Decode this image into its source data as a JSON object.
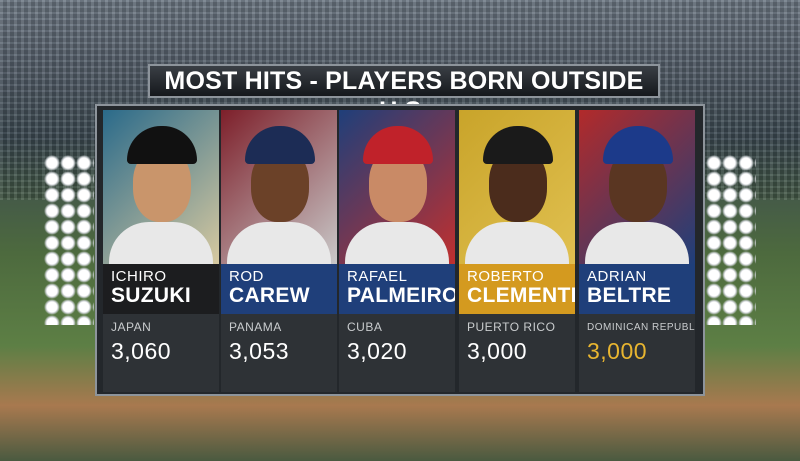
{
  "header": {
    "title": "MOST HITS - PLAYERS BORN OUTSIDE U.S."
  },
  "players": [
    {
      "first": "ICHIRO",
      "last": "SUZUKI",
      "country": "JAPAN",
      "hits": "3,060"
    },
    {
      "first": "ROD",
      "last": "CAREW",
      "country": "PANAMA",
      "hits": "3,053"
    },
    {
      "first": "RAFAEL",
      "last": "PALMEIRO",
      "country": "CUBA",
      "hits": "3,020"
    },
    {
      "first": "ROBERTO",
      "last": "CLEMENTE",
      "country": "PUERTO RICO",
      "hits": "3,000"
    },
    {
      "first": "ADRIAN",
      "last": "BELTRE",
      "country": "DOMINICAN REPUBLIC",
      "hits": "3,000"
    }
  ]
}
